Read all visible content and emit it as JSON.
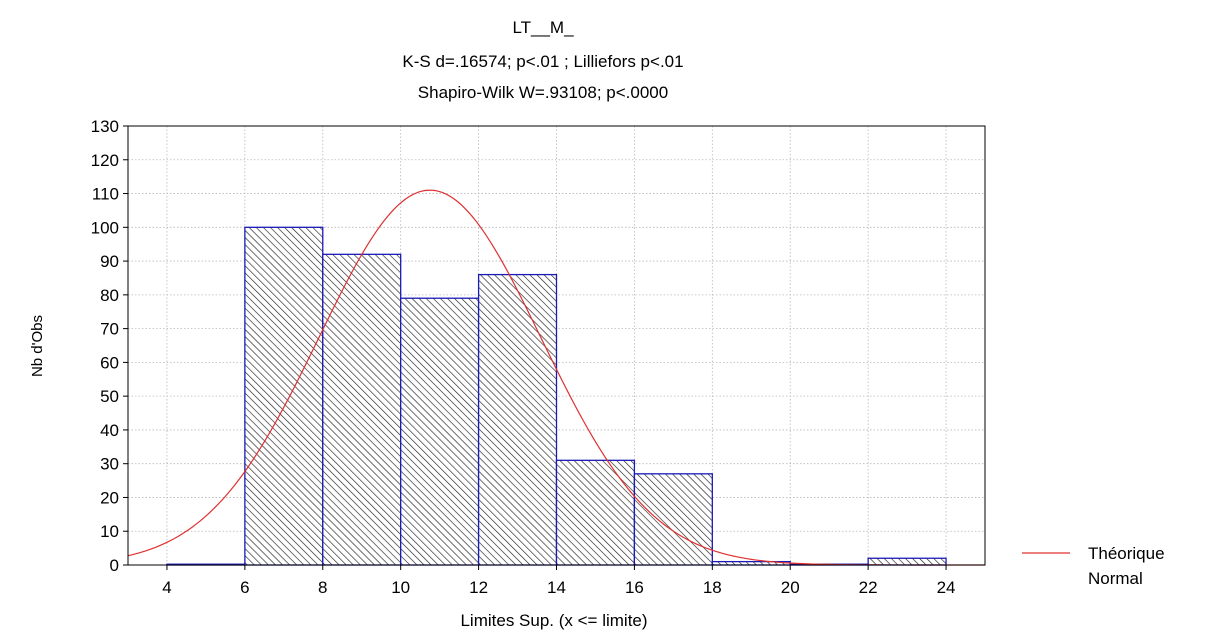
{
  "chart_data": {
    "type": "bar",
    "title": "LT__M_",
    "subtitle_lines": [
      "K-S d=.16574; p<.01 ; Lilliefors p<.01",
      "Shapiro-Wilk W=.93108; p<.0000"
    ],
    "xlabel": "Limites Sup. (x <= limite)",
    "ylabel": "Nb d'Obs",
    "xlim": [
      3,
      25
    ],
    "ylim": [
      0,
      130
    ],
    "xticks": [
      4,
      6,
      8,
      10,
      12,
      14,
      16,
      18,
      20,
      22,
      24
    ],
    "yticks": [
      0,
      10,
      20,
      30,
      40,
      50,
      60,
      70,
      80,
      90,
      100,
      110,
      120,
      130
    ],
    "grid": true,
    "bins": [
      {
        "from": 4,
        "to": 6,
        "count": 0
      },
      {
        "from": 6,
        "to": 8,
        "count": 100
      },
      {
        "from": 8,
        "to": 10,
        "count": 92
      },
      {
        "from": 10,
        "to": 12,
        "count": 79
      },
      {
        "from": 12,
        "to": 14,
        "count": 86
      },
      {
        "from": 14,
        "to": 16,
        "count": 31
      },
      {
        "from": 16,
        "to": 18,
        "count": 27
      },
      {
        "from": 18,
        "to": 20,
        "count": 1
      },
      {
        "from": 20,
        "to": 22,
        "count": 0
      },
      {
        "from": 22,
        "to": 24,
        "count": 2
      }
    ],
    "bar_style": "diagonal hatch",
    "bar_color": "#1a1ab8",
    "normal_curve": {
      "name": "Théorique Normal",
      "color": "#e03030",
      "mean": 10.75,
      "peak": 111,
      "sd": 2.85
    },
    "legend": {
      "placement": "right",
      "lines": [
        "Théorique",
        "Normal"
      ]
    }
  }
}
